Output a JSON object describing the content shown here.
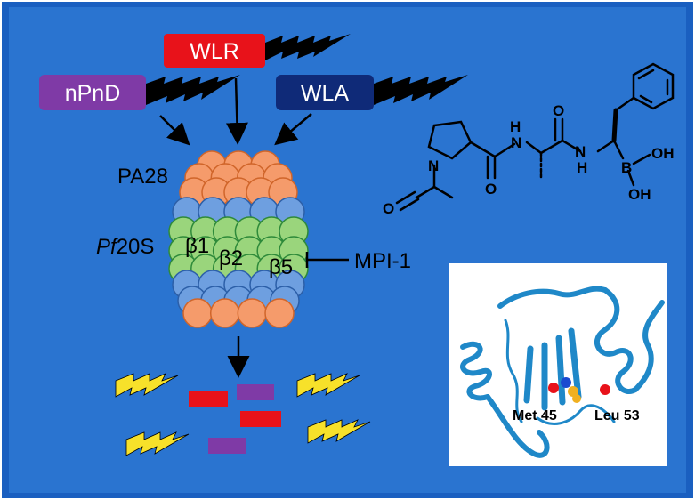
{
  "probes": {
    "wlr": {
      "label": "WLR",
      "color": "#e8121a"
    },
    "npnd": {
      "label": "nPnD",
      "color": "#7f3aa6"
    },
    "wla": {
      "label": "WLA",
      "color": "#0f2a78"
    }
  },
  "labels": {
    "pa28": "PA28",
    "pf20s_italic": "Pf",
    "pf20s_rest": "20S",
    "beta1": "β1",
    "beta2": "β2",
    "beta5": "β5",
    "inhibitor": "MPI-1"
  },
  "structure_atoms": {
    "N": "N",
    "H1": "H",
    "H2": "H",
    "O1": "O",
    "O2": "O",
    "O3": "O",
    "B": "B",
    "OH1": "OH",
    "OH2": "OH"
  },
  "protein_panel": {
    "residue1": "Met 45",
    "residue2": "Leu 53"
  },
  "colors": {
    "background": "#2a74d0",
    "frame": "#1a5fc0",
    "cap_orange": "#f59b6b",
    "ring_blue": "#6e9fe0",
    "ring_green": "#9ad57c",
    "bolt_yellow": "#f7e12a",
    "peptide_red": "#e8121a",
    "peptide_purple": "#7f3aa6",
    "ribbon": "#1f88c8"
  }
}
